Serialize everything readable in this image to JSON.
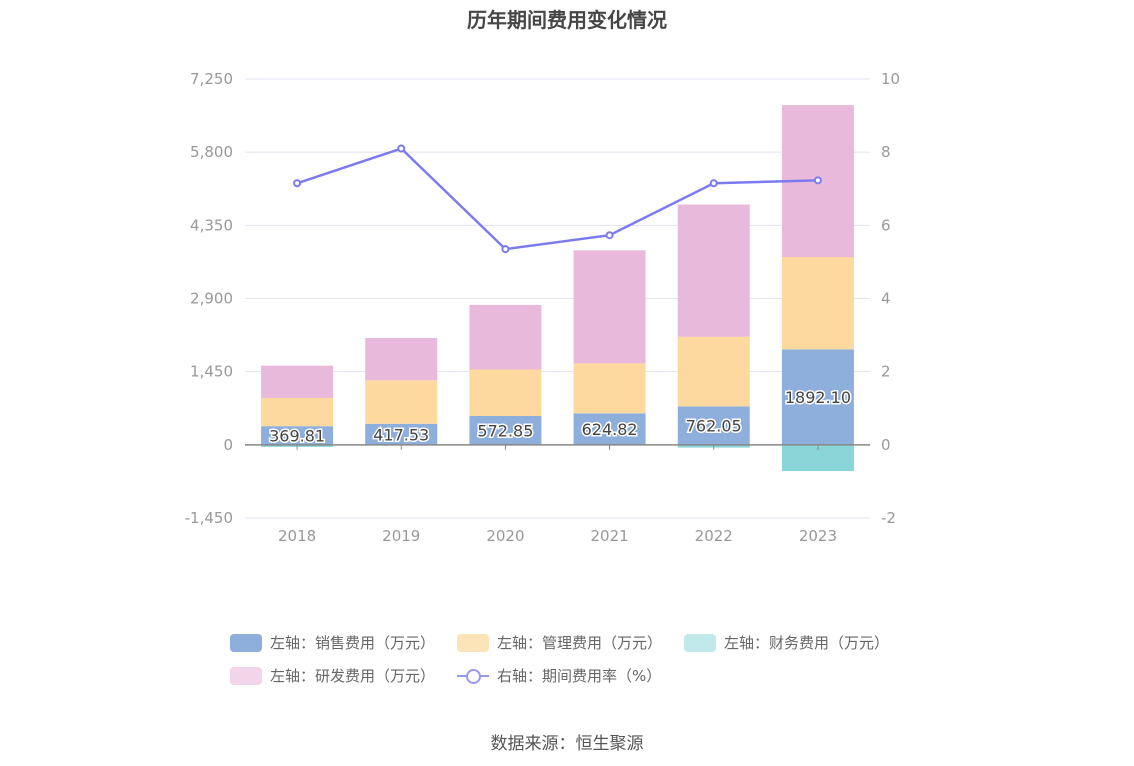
{
  "chart_data": {
    "type": "bar",
    "title": "历年期间费用变化情况",
    "categories": [
      "2018",
      "2019",
      "2020",
      "2021",
      "2022",
      "2023"
    ],
    "left_axis": {
      "ticks": [
        "7,250",
        "5,800",
        "4,350",
        "2,900",
        "1,450",
        "0",
        "-1,450"
      ],
      "ylim": [
        -1450,
        7250
      ]
    },
    "right_axis": {
      "ticks": [
        "10",
        "8",
        "6",
        "4",
        "2",
        "0",
        "-2"
      ],
      "ylim": [
        -2,
        10
      ]
    },
    "series": [
      {
        "name": "左轴：销售费用（万元）",
        "kind": "bar",
        "color": "#8eaedb",
        "values": [
          369.81,
          417.53,
          572.85,
          624.82,
          762.05,
          1892.1
        ],
        "labels": [
          "369.81",
          "417.53",
          "572.85",
          "624.82",
          "762.05",
          "1892.10"
        ]
      },
      {
        "name": "左轴：管理费用（万元）",
        "kind": "bar",
        "color": "#fdd9a0",
        "values": [
          560,
          860,
          920,
          990,
          1380,
          1830
        ]
      },
      {
        "name": "左轴：财务费用（万元）",
        "kind": "bar",
        "color": "#89d5d8",
        "values": [
          -40,
          -10,
          -10,
          -10,
          -55,
          -520
        ]
      },
      {
        "name": "左轴：研发费用（万元）",
        "kind": "bar",
        "color": "#e8b9da",
        "values": [
          640,
          840,
          1280,
          2240,
          2620,
          3010
        ]
      },
      {
        "name": "右轴：期间费用率（%）",
        "kind": "line",
        "color": "#7b7bee",
        "values": [
          7.15,
          8.1,
          5.35,
          5.73,
          7.15,
          7.23
        ]
      }
    ]
  },
  "legend": [
    {
      "label": "左轴：销售费用（万元）",
      "color": "#8eaedb",
      "icon": "bar-swatch"
    },
    {
      "label": "左轴：管理费用（万元）",
      "color": "#fde3b8",
      "icon": "bar-swatch"
    },
    {
      "label": "左轴：财务费用（万元）",
      "color": "#c1e9ea",
      "icon": "bar-swatch"
    },
    {
      "label": "左轴：研发费用（万元）",
      "color": "#f2d5e9",
      "icon": "bar-swatch"
    },
    {
      "label": "右轴：期间费用率（%）",
      "color": "#9898ee",
      "icon": "line-marker"
    }
  ],
  "source": "数据来源：恒生聚源"
}
